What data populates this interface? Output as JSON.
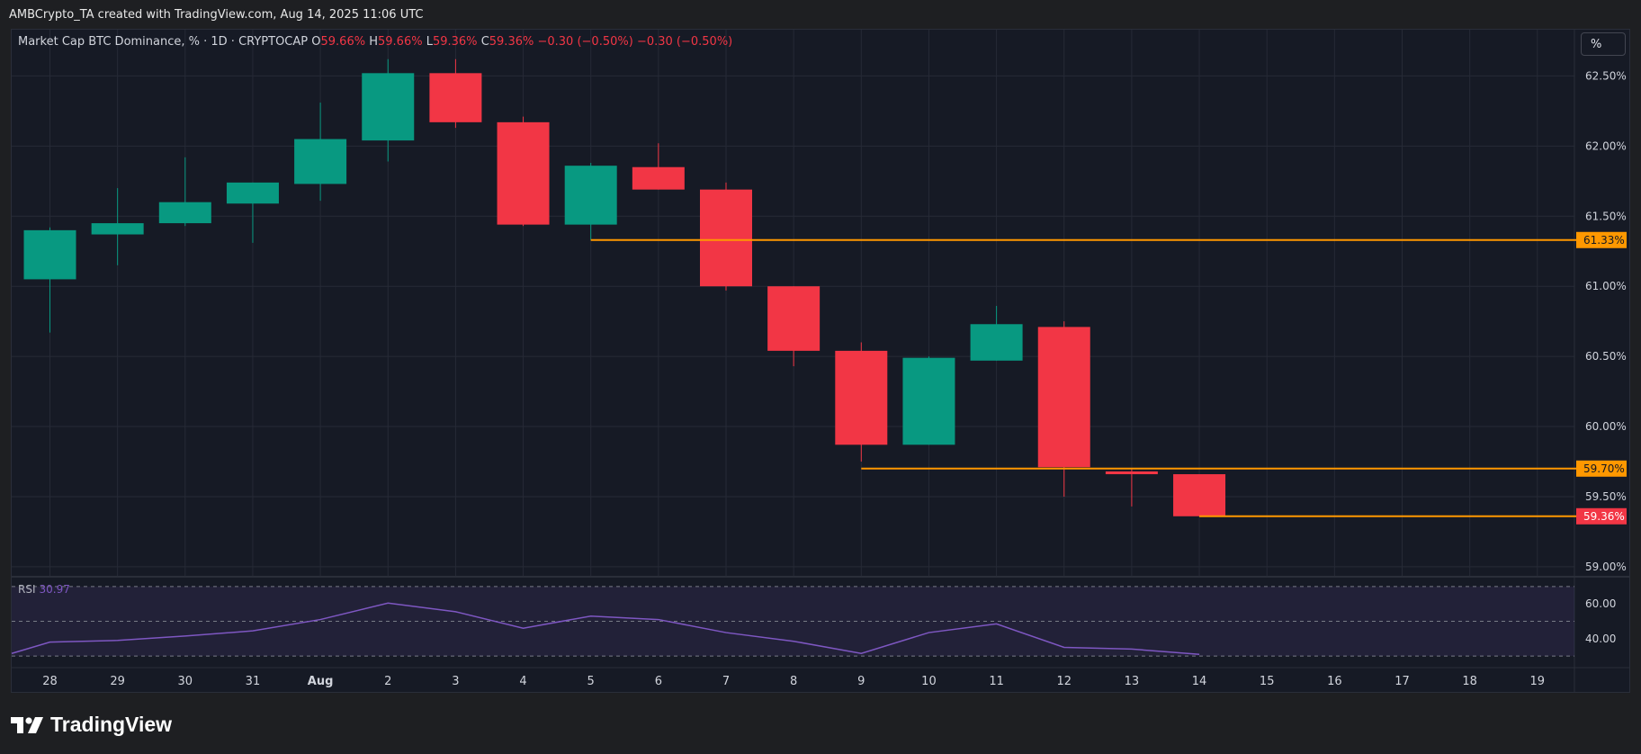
{
  "header": {
    "attribution": "AMBCrypto_TA created with TradingView.com, Aug 14, 2025 11:06 UTC"
  },
  "legend": {
    "symbol": "Market Cap BTC Dominance, % · 1D · CRYPTOCAP",
    "o_label": "O",
    "o_value": "59.66%",
    "h_label": "H",
    "h_value": "59.66%",
    "l_label": "L",
    "l_value": "59.36%",
    "c_label": "C",
    "c_value": "59.36%",
    "change": "−0.30 (−0.50%)",
    "change2": "−0.30 (−0.50%)"
  },
  "toolbar": {
    "scale_button": "%"
  },
  "rsi": {
    "name": "RSI",
    "value": "30.97"
  },
  "brand": {
    "name": "TradingView"
  },
  "colors": {
    "up": "#089981",
    "down": "#f23645",
    "level": "#ff9800",
    "rsi_line": "#7e57c2",
    "grid": "#262a36"
  },
  "chart_data": {
    "type": "candlestick",
    "x_labels": [
      "28",
      "29",
      "30",
      "31",
      "Aug",
      "2",
      "3",
      "4",
      "5",
      "6",
      "7",
      "8",
      "9",
      "10",
      "11",
      "12",
      "13",
      "14",
      "15",
      "16",
      "17",
      "18",
      "19"
    ],
    "candles": [
      {
        "x": "28",
        "open": 61.05,
        "high": 61.42,
        "low": 60.67,
        "close": 61.4
      },
      {
        "x": "29",
        "open": 61.37,
        "high": 61.7,
        "low": 61.15,
        "close": 61.45
      },
      {
        "x": "30",
        "open": 61.45,
        "high": 61.92,
        "low": 61.43,
        "close": 61.6
      },
      {
        "x": "31",
        "open": 61.59,
        "high": 61.74,
        "low": 61.31,
        "close": 61.74
      },
      {
        "x": "Aug",
        "open": 61.73,
        "high": 62.31,
        "low": 61.61,
        "close": 62.05
      },
      {
        "x": "2",
        "open": 62.04,
        "high": 62.62,
        "low": 61.89,
        "close": 62.52
      },
      {
        "x": "3",
        "open": 62.52,
        "high": 62.62,
        "low": 62.13,
        "close": 62.17
      },
      {
        "x": "4",
        "open": 62.17,
        "high": 62.21,
        "low": 61.43,
        "close": 61.44
      },
      {
        "x": "5",
        "open": 61.44,
        "high": 61.88,
        "low": 61.33,
        "close": 61.86
      },
      {
        "x": "6",
        "open": 61.85,
        "high": 62.02,
        "low": 61.69,
        "close": 61.69
      },
      {
        "x": "7",
        "open": 61.69,
        "high": 61.74,
        "low": 60.97,
        "close": 61.0
      },
      {
        "x": "8",
        "open": 61.0,
        "high": 61.0,
        "low": 60.43,
        "close": 60.54
      },
      {
        "x": "9",
        "open": 60.54,
        "high": 60.6,
        "low": 59.75,
        "close": 59.87
      },
      {
        "x": "10",
        "open": 59.87,
        "high": 60.5,
        "low": 59.87,
        "close": 60.49
      },
      {
        "x": "11",
        "open": 60.47,
        "high": 60.86,
        "low": 60.47,
        "close": 60.73
      },
      {
        "x": "12",
        "open": 60.71,
        "high": 60.75,
        "low": 59.5,
        "close": 59.71
      },
      {
        "x": "13",
        "open": 59.68,
        "high": 59.7,
        "low": 59.43,
        "close": 59.66
      },
      {
        "x": "14",
        "open": 59.66,
        "high": 59.66,
        "low": 59.36,
        "close": 59.36
      }
    ],
    "y_ticks": [
      "62.50%",
      "62.00%",
      "61.50%",
      "61.00%",
      "60.50%",
      "60.00%",
      "59.50%",
      "59.00%"
    ],
    "ylim": [
      58.98,
      62.83
    ],
    "levels": [
      {
        "value": 61.33,
        "label": "61.33%",
        "from": "5"
      },
      {
        "value": 59.7,
        "label": "59.70%",
        "from": "9"
      },
      {
        "value": 59.36,
        "label": "59.36%",
        "from": "14"
      }
    ],
    "rsi": {
      "values": [
        31.5,
        38.0,
        39.0,
        41.5,
        44.5,
        51.0,
        60.5,
        55.5,
        46.0,
        53.0,
        51.0,
        43.5,
        38.5,
        31.5,
        43.5,
        48.5,
        35.0,
        34.0,
        31.0
      ],
      "y_ticks": [
        "60.00",
        "40.00"
      ],
      "upper": 70,
      "lower": 30,
      "mid": 50,
      "ylim": [
        28,
        72
      ]
    }
  }
}
